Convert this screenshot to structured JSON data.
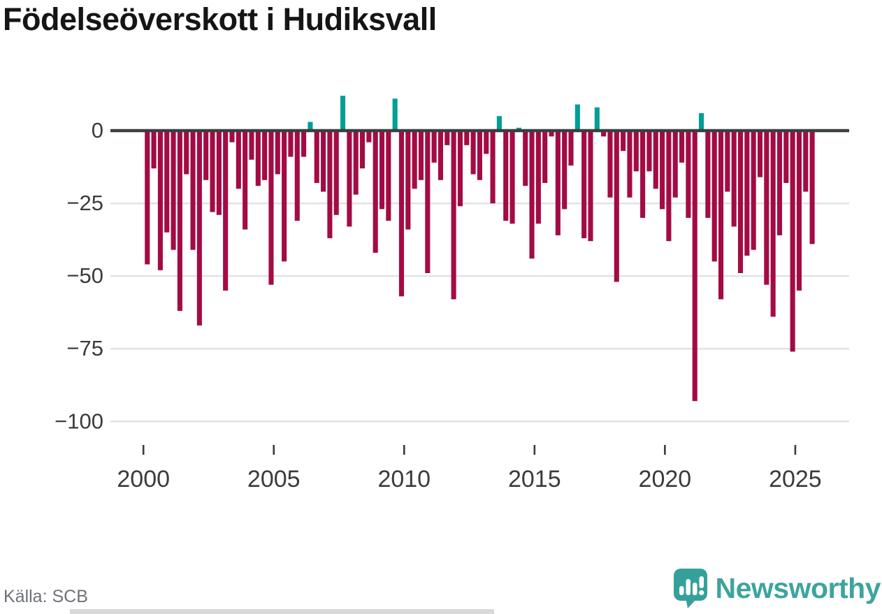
{
  "title": "Födelseöverskott i Hudiksvall",
  "source": "Källa: SCB",
  "branding": {
    "name": "Newsworthy",
    "wordmark_color": "#3da49d",
    "icon_color": "#35a09a",
    "icon": "bar-chart-speech-bubble-icon"
  },
  "chart_data": {
    "type": "bar",
    "title": "Födelseöverskott i Hudiksvall",
    "frequency": "quarterly",
    "period_start": "2000-Q1",
    "period_end": "2025-Q3",
    "grid": true,
    "legend": "none",
    "ylim": [
      -105,
      17
    ],
    "y_ticks": [
      0,
      -25,
      -50,
      -75,
      -100
    ],
    "y_tick_labels": [
      "0",
      "−25",
      "−50",
      "−75",
      "−100"
    ],
    "x_tick_years": [
      2000,
      2005,
      2010,
      2015,
      2020,
      2025
    ],
    "x_tick_labels": [
      "2000",
      "2005",
      "2010",
      "2015",
      "2020",
      "2025"
    ],
    "colors": {
      "negative": "#a30b45",
      "positive": "#009e96",
      "axis": "#3a3f40",
      "gridline": "#e2e2e2",
      "tick_text": "#3b3b3b"
    },
    "series_by_year": [
      {
        "year": 2000,
        "quarters": [
          -46,
          -13,
          -48,
          -35
        ]
      },
      {
        "year": 2001,
        "quarters": [
          -41,
          -62,
          -15,
          -41
        ]
      },
      {
        "year": 2002,
        "quarters": [
          -67,
          -17,
          -28,
          -29
        ]
      },
      {
        "year": 2003,
        "quarters": [
          -55,
          -4,
          -20,
          -34
        ]
      },
      {
        "year": 2004,
        "quarters": [
          -10,
          -19,
          -17,
          -53
        ]
      },
      {
        "year": 2005,
        "quarters": [
          -15,
          -45,
          -9,
          -31
        ]
      },
      {
        "year": 2006,
        "quarters": [
          -9,
          3,
          -18,
          -21
        ]
      },
      {
        "year": 2007,
        "quarters": [
          -37,
          -29,
          12,
          -33
        ]
      },
      {
        "year": 2008,
        "quarters": [
          -22,
          -13,
          -4,
          -42
        ]
      },
      {
        "year": 2009,
        "quarters": [
          -27,
          -31,
          11,
          -57
        ]
      },
      {
        "year": 2010,
        "quarters": [
          -34,
          -20,
          -17,
          -49
        ]
      },
      {
        "year": 2011,
        "quarters": [
          -11,
          -17,
          -5,
          -58
        ]
      },
      {
        "year": 2012,
        "quarters": [
          -26,
          -5,
          -15,
          -17
        ]
      },
      {
        "year": 2013,
        "quarters": [
          -8,
          -25,
          5,
          -31
        ]
      },
      {
        "year": 2014,
        "quarters": [
          -32,
          1,
          -19,
          -44
        ]
      },
      {
        "year": 2015,
        "quarters": [
          -32,
          -18,
          -2,
          -36
        ]
      },
      {
        "year": 2016,
        "quarters": [
          -27,
          -12,
          9,
          -37
        ]
      },
      {
        "year": 2017,
        "quarters": [
          -38,
          8,
          -2,
          -23
        ]
      },
      {
        "year": 2018,
        "quarters": [
          -52,
          -7,
          -23,
          -14
        ]
      },
      {
        "year": 2019,
        "quarters": [
          -30,
          -14,
          -20,
          -27
        ]
      },
      {
        "year": 2020,
        "quarters": [
          -38,
          -23,
          -11,
          -30
        ]
      },
      {
        "year": 2021,
        "quarters": [
          -93,
          6,
          -30,
          -45
        ]
      },
      {
        "year": 2022,
        "quarters": [
          -58,
          -21,
          -33,
          -49
        ]
      },
      {
        "year": 2023,
        "quarters": [
          -43,
          -41,
          -16,
          -53
        ]
      },
      {
        "year": 2024,
        "quarters": [
          -64,
          -36,
          -18,
          -76
        ]
      },
      {
        "year": 2025,
        "quarters": [
          -55,
          -21,
          -39
        ]
      }
    ]
  }
}
